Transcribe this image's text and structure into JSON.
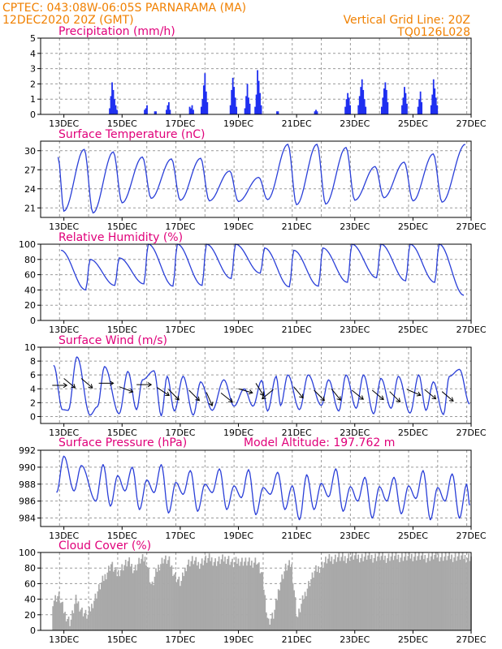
{
  "header": {
    "left_line1": "CPTEC:   043:08W-06:05S  PARNARAMA (MA)",
    "left_line2": "12DEC2020 20Z (GMT)",
    "right_line1": "Vertical Grid Line: 20Z",
    "right_line2": "TQ0126L028"
  },
  "colors": {
    "series": "#2a3fd8",
    "precip_bars": "#1f2ff0",
    "cloud": "#a9a9a9",
    "header_text": "#f08000",
    "panel_titles": "#e0007a"
  },
  "chart_data": [
    {
      "type": "bar",
      "title": "Precipitation (mm/h)",
      "x_ticks": [
        "13DEC",
        "15DEC",
        "17DEC",
        "19DEC",
        "21DEC",
        "23DEC",
        "25DEC",
        "27DEC"
      ],
      "ylim": [
        0,
        5
      ],
      "y_ticks": [
        0,
        1,
        2,
        3,
        4,
        5
      ],
      "grid": true,
      "series": [
        {
          "events": [
            {
              "x_day": 14.55,
              "values": [
                0.4,
                1.2,
                2.1,
                1.6,
                1.0,
                0.6,
                0.3
              ]
            },
            {
              "x_day": 15.75,
              "values": [
                0.3,
                0.4,
                0.6
              ]
            },
            {
              "x_day": 16.1,
              "values": [
                0.2,
                0.2
              ]
            },
            {
              "x_day": 16.5,
              "values": [
                0.3,
                0.6,
                0.8,
                0.3
              ]
            },
            {
              "x_day": 17.3,
              "values": [
                0.5,
                0.4,
                0.6,
                0.3
              ]
            },
            {
              "x_day": 17.7,
              "values": [
                0.5,
                1.0,
                1.9,
                2.7,
                1.5,
                0.8
              ]
            },
            {
              "x_day": 18.7,
              "values": [
                0.6,
                1.6,
                2.4,
                1.8,
                1.1,
                0.5
              ]
            },
            {
              "x_day": 19.2,
              "values": [
                0.4,
                1.2,
                2.0,
                1.1,
                0.7
              ]
            },
            {
              "x_day": 19.55,
              "values": [
                0.5,
                1.3,
                2.9,
                2.2,
                1.4,
                0.6
              ]
            },
            {
              "x_day": 20.3,
              "values": [
                0.2,
                0.2
              ]
            },
            {
              "x_day": 21.6,
              "values": [
                0.2,
                0.3,
                0.2
              ]
            },
            {
              "x_day": 22.65,
              "values": [
                0.5,
                1.0,
                1.4,
                1.1,
                0.6
              ]
            },
            {
              "x_day": 23.1,
              "values": [
                0.6,
                1.2,
                1.8,
                2.3,
                1.6,
                1.0,
                0.5
              ]
            },
            {
              "x_day": 23.9,
              "values": [
                0.5,
                1.1,
                1.7,
                2.1,
                1.6,
                0.8
              ]
            },
            {
              "x_day": 24.6,
              "values": [
                0.6,
                1.1,
                1.8,
                1.4,
                0.7
              ]
            },
            {
              "x_day": 25.15,
              "values": [
                0.5,
                1.0,
                1.5,
                0.8
              ]
            },
            {
              "x_day": 25.6,
              "values": [
                0.6,
                1.3,
                2.3,
                1.7,
                1.1,
                0.6
              ]
            }
          ]
        }
      ]
    },
    {
      "type": "line",
      "title": "Surface Temperature (nC)",
      "x_ticks": [
        "13DEC",
        "15DEC",
        "17DEC",
        "19DEC",
        "21DEC",
        "23DEC",
        "25DEC",
        "27DEC"
      ],
      "ylim": [
        19.5,
        31.5
      ],
      "y_ticks": [
        21,
        24,
        27,
        30
      ],
      "grid": true,
      "series": [
        {
          "t_min_days": [
            13.0,
            14.0,
            15.0,
            16.0,
            17.0,
            18.0,
            19.0,
            20.0,
            21.0,
            22.0,
            23.0,
            24.0,
            25.0,
            26.0
          ],
          "t_min_values": [
            20.5,
            20.2,
            21.8,
            22.5,
            22.2,
            22.1,
            22.0,
            22.3,
            21.5,
            21.6,
            22.2,
            22.6,
            22.1,
            21.9
          ],
          "t_max_days": [
            12.8,
            13.7,
            14.7,
            15.7,
            16.7,
            17.7,
            18.7,
            19.7,
            20.7,
            21.7,
            22.7,
            23.7,
            24.7,
            25.7,
            26.8
          ],
          "t_max_values": [
            29.0,
            30.2,
            29.8,
            29.0,
            28.7,
            28.8,
            26.8,
            25.8,
            31.0,
            31.0,
            30.5,
            27.5,
            28.2,
            29.5,
            31.0
          ]
        }
      ]
    },
    {
      "type": "line",
      "title": "Relative Humidity (%)",
      "x_ticks": [
        "13DEC",
        "15DEC",
        "17DEC",
        "19DEC",
        "21DEC",
        "23DEC",
        "25DEC",
        "27DEC"
      ],
      "ylim": [
        0,
        100
      ],
      "y_ticks": [
        0,
        20,
        40,
        60,
        80,
        100
      ],
      "grid": true,
      "series": [
        {
          "rh_max_days": [
            12.9,
            13.9,
            14.9,
            15.9,
            16.9,
            17.9,
            18.9,
            19.9,
            20.9,
            21.9,
            22.9,
            23.9,
            24.9,
            25.9
          ],
          "rh_max_values": [
            92,
            80,
            82,
            100,
            100,
            100,
            100,
            95,
            92,
            95,
            100,
            100,
            100,
            100
          ],
          "rh_min_days": [
            13.75,
            14.75,
            15.75,
            16.75,
            17.75,
            18.75,
            19.75,
            20.75,
            21.75,
            22.75,
            23.75,
            24.75,
            25.75,
            26.75
          ],
          "rh_min_values": [
            40,
            46,
            48,
            45,
            46,
            55,
            62,
            44,
            45,
            50,
            56,
            52,
            50,
            33
          ]
        }
      ]
    },
    {
      "type": "line",
      "title": "Surface Wind (m/s)",
      "x_ticks": [
        "13DEC",
        "15DEC",
        "17DEC",
        "19DEC",
        "21DEC",
        "23DEC",
        "25DEC",
        "27DEC"
      ],
      "ylim": [
        -1,
        10
      ],
      "y_ticks": [
        0,
        2,
        4,
        6,
        8,
        10
      ],
      "grid": true,
      "series": [
        {
          "speed_max_days": [
            12.65,
            13.45,
            14.4,
            15.2,
            15.7,
            16.1,
            16.55,
            17.1,
            17.7,
            18.5,
            19.2,
            19.8,
            20.3,
            20.7,
            21.4,
            22.1,
            22.7,
            23.3,
            23.9,
            24.5,
            25.2,
            25.7,
            26.25,
            26.6
          ],
          "speed_max_values": [
            7.4,
            8.6,
            7.2,
            6.5,
            5.3,
            6.6,
            5.8,
            5.8,
            5.0,
            5.3,
            4.0,
            5.2,
            5.8,
            6.0,
            6.0,
            5.3,
            6.0,
            6.0,
            5.5,
            5.8,
            6.0,
            5.0,
            5.8,
            6.8
          ],
          "speed_min_days": [
            12.95,
            13.15,
            13.9,
            14.15,
            14.9,
            15.5,
            16.35,
            16.8,
            17.45,
            18.1,
            18.85,
            19.5,
            20.0,
            20.45,
            21.1,
            21.85,
            22.45,
            23.05,
            23.65,
            24.25,
            24.9,
            25.45,
            26.05,
            26.95
          ],
          "speed_min_values": [
            1.0,
            0.9,
            0.2,
            1.4,
            0.4,
            1.0,
            0.1,
            0.8,
            0.2,
            0.9,
            1.5,
            1.5,
            0.8,
            1.6,
            1.0,
            1.6,
            0.8,
            1.2,
            0.4,
            1.2,
            0.5,
            0.9,
            0.3,
            1.8
          ],
          "wind_vectors": [
            {
              "x_day": 12.6,
              "y": 4.5,
              "u": 1,
              "v": 0
            },
            {
              "x_day": 13.0,
              "y": 5.5,
              "u": 0.6,
              "v": -0.5
            },
            {
              "x_day": 13.6,
              "y": 5.5,
              "u": 0.7,
              "v": -0.6
            },
            {
              "x_day": 14.2,
              "y": 4.8,
              "u": 0.8,
              "v": 0
            },
            {
              "x_day": 14.9,
              "y": 4.3,
              "u": 0.8,
              "v": -0.3
            },
            {
              "x_day": 15.5,
              "y": 4.6,
              "u": 0.9,
              "v": 0
            },
            {
              "x_day": 16.2,
              "y": 4.2,
              "u": 0.6,
              "v": -0.4
            },
            {
              "x_day": 16.6,
              "y": 3.9,
              "u": 0.5,
              "v": -0.5
            },
            {
              "x_day": 17.3,
              "y": 3.8,
              "u": 0.4,
              "v": -0.4
            },
            {
              "x_day": 17.9,
              "y": 3.5,
              "u": 0.3,
              "v": -0.7
            },
            {
              "x_day": 18.4,
              "y": 3.4,
              "u": 0.5,
              "v": -0.4
            },
            {
              "x_day": 19.0,
              "y": 4.0,
              "u": 0.7,
              "v": -0.2
            },
            {
              "x_day": 19.6,
              "y": 4.8,
              "u": 0.5,
              "v": -0.8
            },
            {
              "x_day": 20.2,
              "y": 3.9,
              "u": -0.6,
              "v": -0.5
            },
            {
              "x_day": 20.9,
              "y": 4.3,
              "u": 0.5,
              "v": -0.6
            },
            {
              "x_day": 21.6,
              "y": 3.8,
              "u": 0.6,
              "v": -0.6
            },
            {
              "x_day": 22.2,
              "y": 4.0,
              "u": 0.4,
              "v": -0.5
            },
            {
              "x_day": 22.9,
              "y": 3.8,
              "u": 0.5,
              "v": -0.4
            },
            {
              "x_day": 23.6,
              "y": 3.8,
              "u": 0.6,
              "v": -0.5
            },
            {
              "x_day": 24.2,
              "y": 3.6,
              "u": 0.5,
              "v": -0.5
            },
            {
              "x_day": 24.8,
              "y": 3.9,
              "u": 0.7,
              "v": -0.3
            },
            {
              "x_day": 25.4,
              "y": 3.9,
              "u": 0.6,
              "v": -0.5
            },
            {
              "x_day": 26.0,
              "y": 3.6,
              "u": 0.7,
              "v": -0.6
            }
          ]
        }
      ]
    },
    {
      "type": "line",
      "title": "Surface Pressure (hPa)",
      "annotation": "Model Altitude: 197.762 m",
      "x_ticks": [
        "13DEC",
        "15DEC",
        "17DEC",
        "19DEC",
        "21DEC",
        "23DEC",
        "25DEC",
        "27DEC"
      ],
      "ylim": [
        983,
        992
      ],
      "y_ticks": [
        984,
        986,
        988,
        990,
        992
      ],
      "grid": true,
      "series": [
        {
          "p_max_days": [
            13.0,
            13.6,
            14.35,
            14.85,
            15.35,
            15.85,
            16.35,
            16.85,
            17.35,
            17.85,
            18.35,
            18.85,
            19.35,
            19.85,
            20.35,
            20.85,
            21.35,
            21.85,
            22.35,
            22.85,
            23.35,
            23.85,
            24.35,
            24.85,
            25.35,
            25.85,
            26.35,
            26.85
          ],
          "p_max_values": [
            991.3,
            990.2,
            990.3,
            989.0,
            990.0,
            988.5,
            990.3,
            988.2,
            989.6,
            988.0,
            989.8,
            987.8,
            989.7,
            987.6,
            989.4,
            987.8,
            989.1,
            988.1,
            989.8,
            987.7,
            988.8,
            987.7,
            988.8,
            987.8,
            989.6,
            987.6,
            989.2,
            988.0
          ],
          "p_min_days": [
            12.75,
            13.35,
            14.1,
            14.6,
            15.1,
            15.6,
            16.1,
            16.6,
            17.1,
            17.6,
            18.1,
            18.6,
            19.1,
            19.6,
            20.1,
            20.6,
            21.1,
            21.6,
            22.1,
            22.6,
            23.1,
            23.6,
            24.1,
            24.6,
            25.1,
            25.6,
            26.1,
            26.6,
            26.95
          ],
          "p_min_values": [
            987.0,
            987.2,
            986.0,
            985.4,
            987.2,
            985.0,
            987.0,
            984.6,
            986.8,
            984.8,
            987.0,
            985.0,
            986.4,
            984.4,
            986.8,
            985.0,
            983.8,
            985.0,
            986.5,
            984.8,
            986.0,
            984.0,
            986.0,
            984.5,
            986.3,
            983.8,
            986.0,
            984.0,
            985.5
          ]
        }
      ]
    },
    {
      "type": "area",
      "title": "Cloud Cover (%)",
      "x_ticks": [
        "13DEC",
        "15DEC",
        "17DEC",
        "19DEC",
        "21DEC",
        "23DEC",
        "25DEC",
        "27DEC"
      ],
      "ylim": [
        0,
        100
      ],
      "y_ticks": [
        0,
        20,
        40,
        60,
        80,
        100
      ],
      "grid": true,
      "series": [
        {
          "days": [
            12.6,
            12.8,
            13.0,
            13.2,
            13.4,
            13.6,
            13.8,
            14.0,
            14.2,
            14.4,
            14.6,
            14.8,
            15.0,
            15.2,
            15.4,
            15.6,
            15.8,
            16.0,
            16.2,
            16.4,
            16.6,
            16.8,
            17.0,
            17.2,
            17.4,
            17.6,
            17.8,
            18.0,
            18.2,
            18.4,
            18.6,
            18.8,
            19.0,
            19.2,
            19.4,
            19.6,
            19.8,
            20.0,
            20.2,
            20.4,
            20.6,
            20.8,
            21.0,
            21.2,
            21.4,
            21.6,
            21.8,
            22.0,
            22.2,
            22.4,
            22.6,
            22.8,
            23.0,
            23.2,
            23.4,
            23.6,
            23.8,
            24.0,
            24.2,
            24.4,
            24.6,
            24.8,
            25.0,
            25.2,
            25.4,
            25.6,
            25.8,
            26.0,
            26.2,
            26.4,
            26.6,
            26.8,
            27.0
          ],
          "values": [
            38,
            45,
            22,
            10,
            40,
            25,
            18,
            38,
            55,
            70,
            85,
            72,
            82,
            88,
            78,
            90,
            92,
            55,
            80,
            92,
            88,
            70,
            60,
            85,
            90,
            85,
            90,
            92,
            88,
            90,
            93,
            85,
            90,
            88,
            86,
            90,
            70,
            10,
            20,
            60,
            80,
            85,
            15,
            40,
            60,
            75,
            82,
            90,
            92,
            94,
            92,
            95,
            95,
            94,
            95,
            94,
            95,
            93,
            95,
            94,
            95,
            94,
            96,
            95,
            94,
            95,
            96,
            95,
            94,
            95,
            95,
            94,
            95
          ]
        }
      ]
    }
  ]
}
